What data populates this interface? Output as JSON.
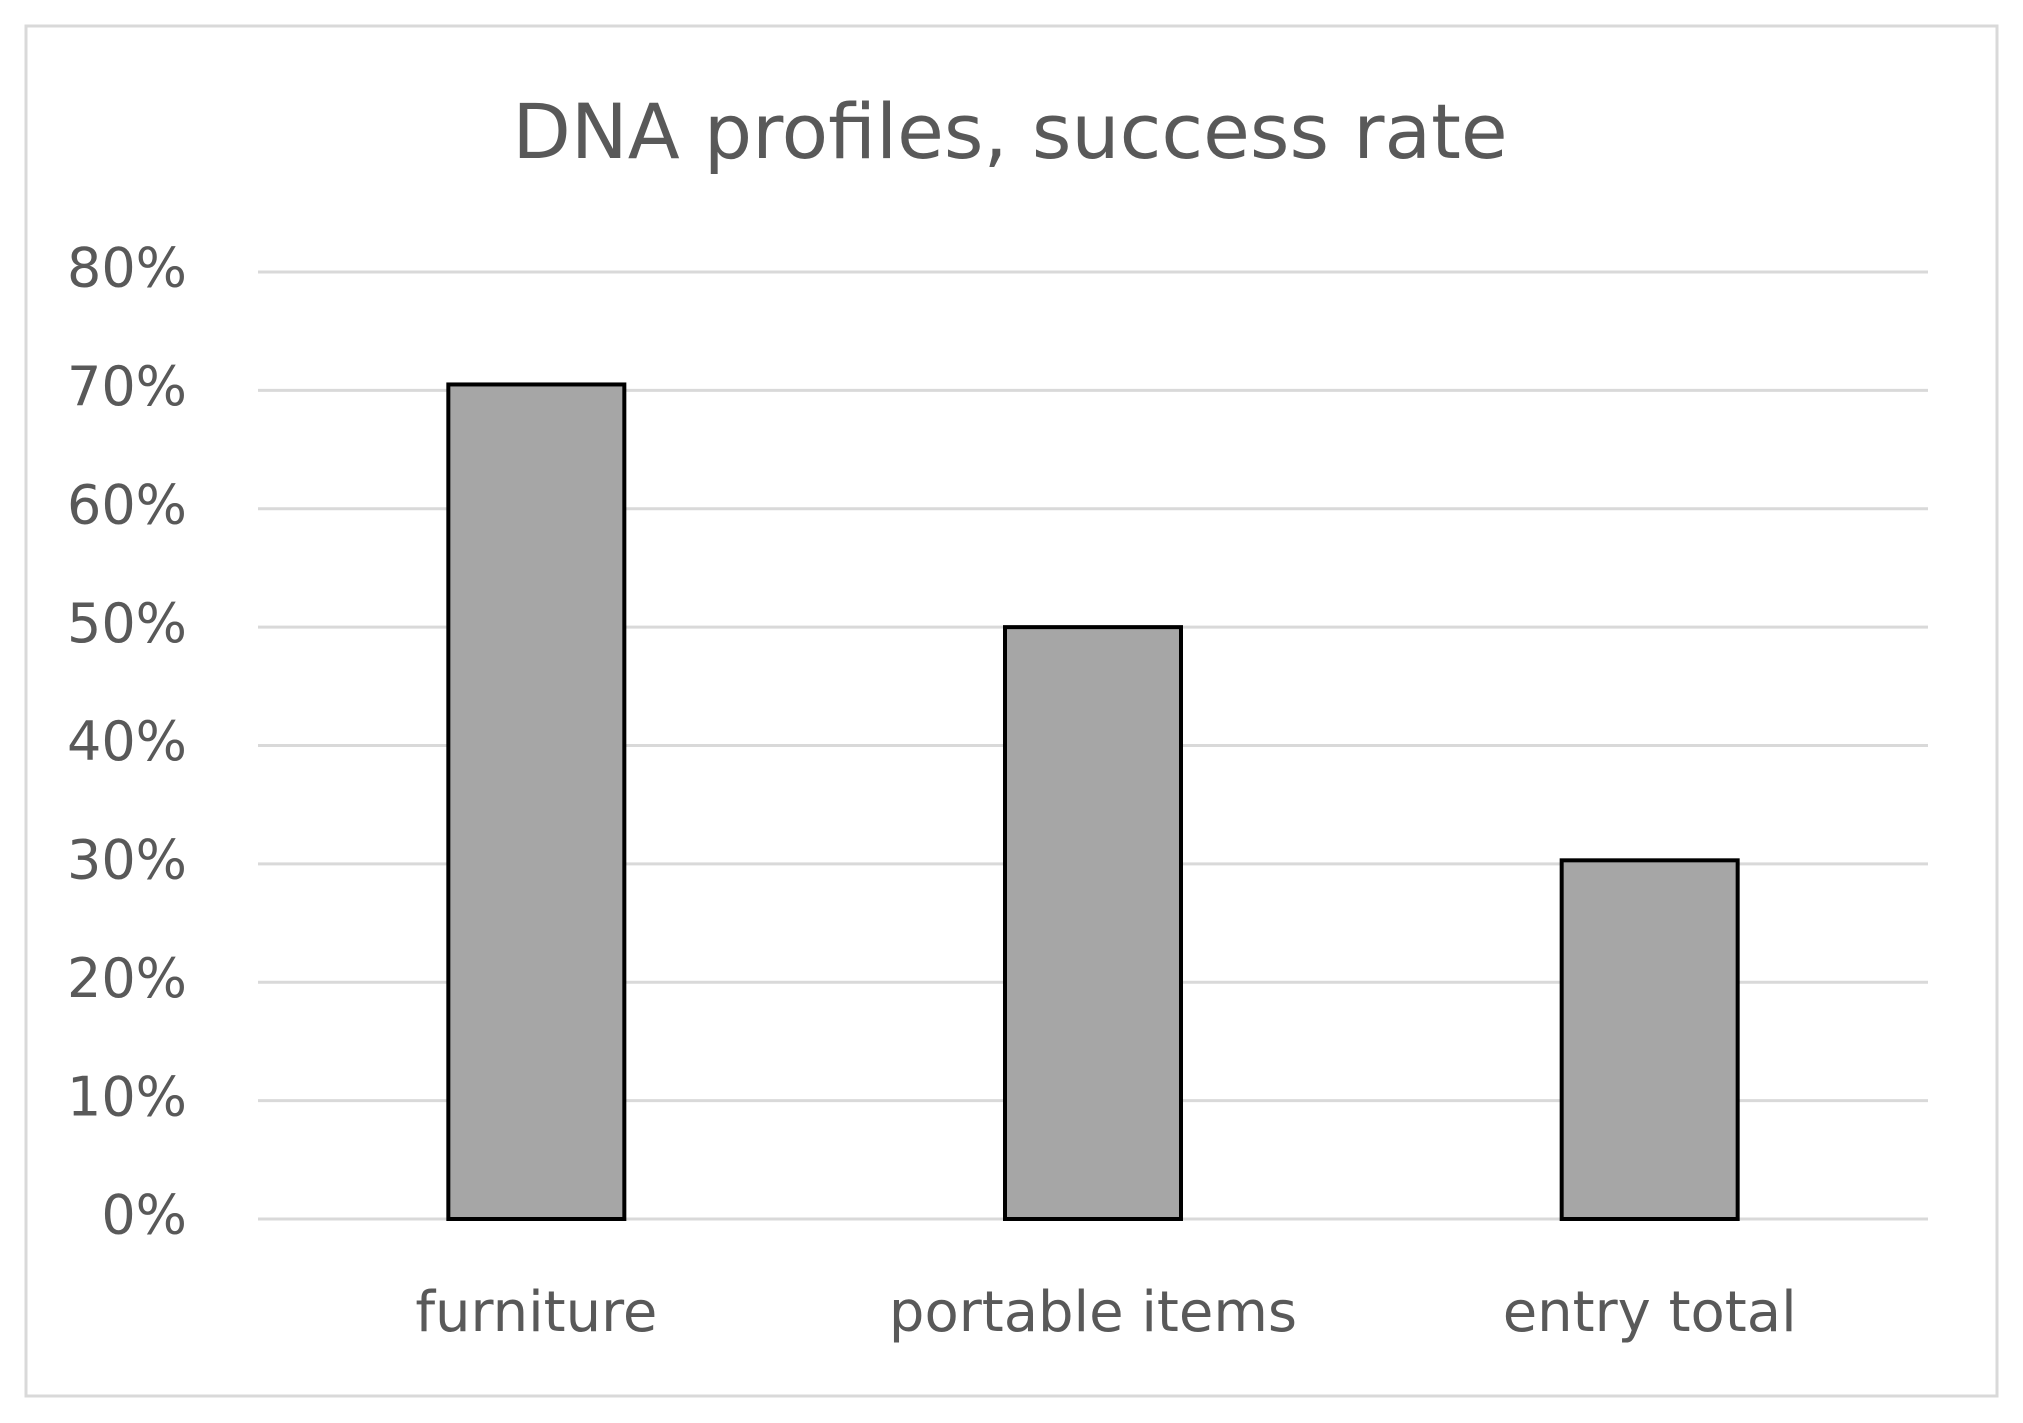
{
  "chart_data": {
    "type": "bar",
    "title": "DNA profiles, success rate",
    "categories": [
      "furniture",
      "portable items",
      "entry total"
    ],
    "values": [
      70.5,
      50,
      30.3
    ],
    "color": "#a6a6a6",
    "ylim": [
      0,
      80
    ],
    "yticks": [
      {
        "value": 0,
        "label": "0%"
      },
      {
        "value": 10,
        "label": "10%"
      },
      {
        "value": 20,
        "label": "20%"
      },
      {
        "value": 30,
        "label": "30%"
      },
      {
        "value": 40,
        "label": "40%"
      },
      {
        "value": 50,
        "label": "50%"
      },
      {
        "value": 60,
        "label": "60%"
      },
      {
        "value": 70,
        "label": "70%"
      },
      {
        "value": 80,
        "label": "80%"
      }
    ],
    "grid": true
  }
}
